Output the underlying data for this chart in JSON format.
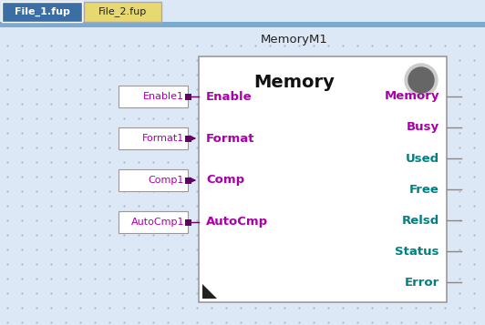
{
  "bg_color": "#dce8f5",
  "fig_bg": "#dce8f5",
  "tab1_text": "File_1.fup",
  "tab2_text": "File_2.fup",
  "tab1_bg": "#3a6ea5",
  "tab2_bg": "#e8d870",
  "tab1_text_color": "#ffffff",
  "tab2_text_color": "#222222",
  "tab_bar_color": "#7aaad0",
  "block_title": "MemoryM1",
  "block_name": "Memory",
  "block_bg": "#ffffff",
  "block_border": "#999999",
  "input_pins": [
    "Enable",
    "Format",
    "Comp",
    "AutoCmp"
  ],
  "output_pins": [
    "Memory",
    "Busy",
    "Used",
    "Free",
    "Relsd",
    "Status",
    "Error"
  ],
  "input_vars": [
    "Enable1",
    "Format1",
    "Comp1",
    "AutoCmp1"
  ],
  "input_color": "#aa00aa",
  "output_color_top2": "#aa00aa",
  "output_color_rest": "#008080",
  "connector_color": "#660066",
  "arrow_pins": [
    "Format",
    "Comp"
  ],
  "title_color": "#222222",
  "block_name_color": "#111111",
  "circle_bg": "#cccccc",
  "circle_fg": "#666666",
  "dot_color": "#aabbd0",
  "triangle_color": "#222222"
}
